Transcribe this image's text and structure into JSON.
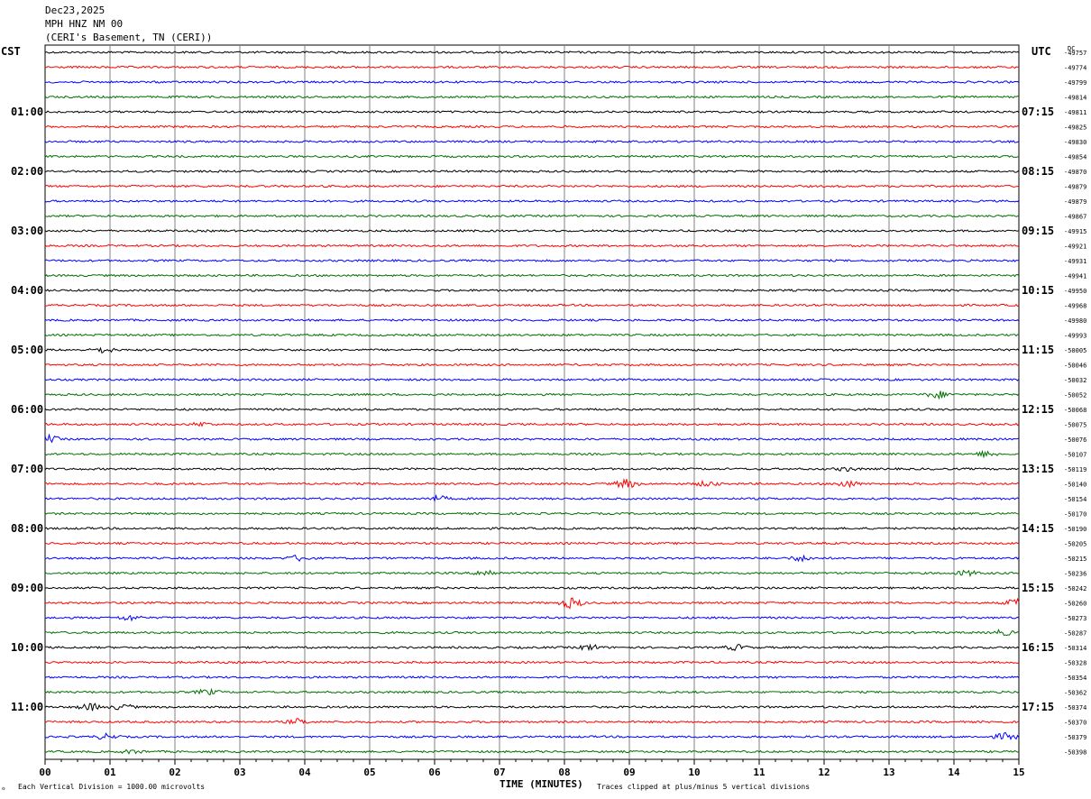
{
  "header": {
    "date": "Dec23,2025",
    "station": "MPH HNZ NM 00",
    "location": "(CERI's Basement, TN (CERI))"
  },
  "axes": {
    "left_tz": "CST",
    "right_tz": "UTC",
    "dc_label": "DC",
    "x_title": "TIME (MINUTES)"
  },
  "footer": {
    "scale_note": "Each Vertical Division = 1000.00 microvolts",
    "clip_note": "Traces clipped at plus/minus 5 vertical divisions"
  },
  "colors": {
    "trace_cycle": [
      "#000000",
      "#ff0000",
      "#0000ff",
      "#007000"
    ],
    "grid": "#808080"
  },
  "chart_data": {
    "type": "line",
    "title": "",
    "xlabel": "TIME (MINUTES)",
    "ylabel": "",
    "xlim": [
      0,
      15
    ],
    "x_ticks": [
      "00",
      "01",
      "02",
      "03",
      "04",
      "05",
      "06",
      "07",
      "08",
      "09",
      "10",
      "11",
      "12",
      "13",
      "14",
      "15"
    ],
    "trace_count": 48,
    "left_hour_labels": [
      {
        "trace": 4,
        "label": "01:00"
      },
      {
        "trace": 8,
        "label": "02:00"
      },
      {
        "trace": 12,
        "label": "03:00"
      },
      {
        "trace": 16,
        "label": "04:00"
      },
      {
        "trace": 20,
        "label": "05:00"
      },
      {
        "trace": 24,
        "label": "06:00"
      },
      {
        "trace": 28,
        "label": "07:00"
      },
      {
        "trace": 32,
        "label": "08:00"
      },
      {
        "trace": 36,
        "label": "09:00"
      },
      {
        "trace": 40,
        "label": "10:00"
      },
      {
        "trace": 44,
        "label": "11:00"
      }
    ],
    "right_hour_labels": [
      {
        "trace": 4,
        "label": "07:15"
      },
      {
        "trace": 8,
        "label": "08:15"
      },
      {
        "trace": 12,
        "label": "09:15"
      },
      {
        "trace": 16,
        "label": "10:15"
      },
      {
        "trace": 20,
        "label": "11:15"
      },
      {
        "trace": 24,
        "label": "12:15"
      },
      {
        "trace": 28,
        "label": "13:15"
      },
      {
        "trace": 32,
        "label": "14:15"
      },
      {
        "trace": 36,
        "label": "15:15"
      },
      {
        "trace": 40,
        "label": "16:15"
      },
      {
        "trace": 44,
        "label": "17:15"
      }
    ],
    "dc_offsets": [
      "-49757",
      "-49774",
      "-49799",
      "-49814",
      "-49811",
      "-49825",
      "-49830",
      "-49854",
      "-49870",
      "-49879",
      "-49879",
      "-49867",
      "-49915",
      "-49921",
      "-49931",
      "-49941",
      "-49950",
      "-49968",
      "-49980",
      "-49993",
      "-50005",
      "-50046",
      "-50032",
      "-50052",
      "-50068",
      "-50075",
      "-50076",
      "-50107",
      "-50119",
      "-50140",
      "-50154",
      "-50170",
      "-50190",
      "-50205",
      "-50215",
      "-50236",
      "-50242",
      "-50260",
      "-50273",
      "-50287",
      "-50314",
      "-50328",
      "-50354",
      "-50362",
      "-50374",
      "-50370",
      "-50379",
      "-50398"
    ],
    "events": [
      {
        "trace": 20,
        "minute": 0.9,
        "amp": 3
      },
      {
        "trace": 23,
        "minute": 13.75,
        "amp": 4
      },
      {
        "trace": 25,
        "minute": 2.4,
        "amp": 2
      },
      {
        "trace": 26,
        "minute": 0.05,
        "amp": 4
      },
      {
        "trace": 27,
        "minute": 14.5,
        "amp": 3
      },
      {
        "trace": 28,
        "minute": 12.35,
        "amp": 2
      },
      {
        "trace": 29,
        "minute": 8.95,
        "amp": 5
      },
      {
        "trace": 29,
        "minute": 10.2,
        "amp": 3
      },
      {
        "trace": 29,
        "minute": 12.35,
        "amp": 4
      },
      {
        "trace": 30,
        "minute": 6.05,
        "amp": 3
      },
      {
        "trace": 34,
        "minute": 3.9,
        "amp": 3
      },
      {
        "trace": 34,
        "minute": 11.65,
        "amp": 3
      },
      {
        "trace": 35,
        "minute": 6.8,
        "amp": 4
      },
      {
        "trace": 35,
        "minute": 14.2,
        "amp": 3
      },
      {
        "trace": 37,
        "minute": 8.1,
        "amp": 6
      },
      {
        "trace": 37,
        "minute": 14.95,
        "amp": 4
      },
      {
        "trace": 38,
        "minute": 1.3,
        "amp": 3
      },
      {
        "trace": 39,
        "minute": 14.75,
        "amp": 3
      },
      {
        "trace": 40,
        "minute": 8.4,
        "amp": 3
      },
      {
        "trace": 40,
        "minute": 10.65,
        "amp": 3
      },
      {
        "trace": 43,
        "minute": 2.5,
        "amp": 3
      },
      {
        "trace": 44,
        "minute": 0.7,
        "amp": 4
      },
      {
        "trace": 44,
        "minute": 1.2,
        "amp": 3
      },
      {
        "trace": 45,
        "minute": 3.9,
        "amp": 3
      },
      {
        "trace": 46,
        "minute": 0.95,
        "amp": 3
      },
      {
        "trace": 46,
        "minute": 14.8,
        "amp": 4
      },
      {
        "trace": 47,
        "minute": 1.35,
        "amp": 2
      }
    ]
  }
}
